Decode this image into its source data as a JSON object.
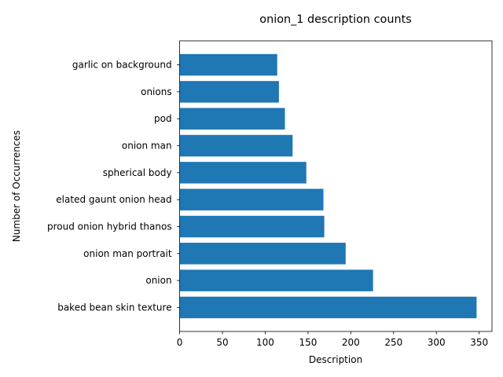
{
  "chart_data": {
    "type": "bar",
    "orientation": "horizontal",
    "title": "onion_1 description counts",
    "xlabel": "Description",
    "ylabel": "Number of Occurrences",
    "xlim": [
      0,
      365
    ],
    "x_ticks": [
      0,
      50,
      100,
      150,
      200,
      250,
      300,
      350
    ],
    "grid": false,
    "bar_color": "#1f77b4",
    "categories": [
      "baked bean skin texture",
      "onion",
      "onion man portrait",
      "proud onion hybrid thanos",
      "elated gaunt onion head",
      "spherical body",
      "onion man",
      "pod",
      "onions",
      "garlic on background"
    ],
    "values": [
      347,
      226,
      194,
      169,
      168,
      148,
      132,
      123,
      116,
      114
    ]
  }
}
